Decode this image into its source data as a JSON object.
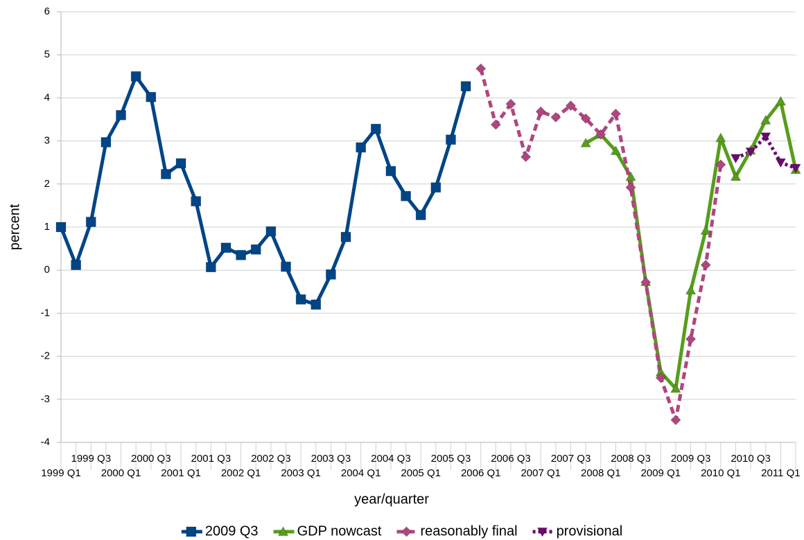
{
  "chart_data": {
    "type": "line",
    "x_label": "year/quarter",
    "y_label": "percent",
    "categories": [
      "1999 Q1",
      null,
      "1999 Q3",
      null,
      "2000 Q1",
      null,
      "2000 Q3",
      null,
      "2001 Q1",
      null,
      "2001 Q3",
      null,
      "2002 Q1",
      null,
      "2002 Q3",
      null,
      "2003 Q1",
      null,
      "2003 Q3",
      null,
      "2004 Q1",
      null,
      "2004 Q3",
      null,
      "2005 Q1",
      null,
      "2005 Q3",
      null,
      "2006 Q1",
      null,
      "2006 Q3",
      null,
      "2007 Q1",
      null,
      "2007 Q3",
      null,
      "2008 Q1",
      null,
      "2008 Q3",
      null,
      "2009 Q1",
      null,
      "2009 Q3",
      null,
      "2010 Q1",
      null,
      "2010 Q3",
      null,
      "2011 Q1",
      null
    ],
    "ylim": [
      -4,
      6
    ],
    "yticks": [
      -4,
      -3,
      -2,
      -1,
      0,
      1,
      2,
      3,
      4,
      5,
      6
    ],
    "grid": true,
    "legend": "bottom",
    "series": [
      {
        "name": "2009 Q3",
        "color": "#004586",
        "marker": "square",
        "dash": "solid",
        "values": [
          1.0,
          0.12,
          1.12,
          2.97,
          3.6,
          4.5,
          4.02,
          2.23,
          2.48,
          1.6,
          0.07,
          0.52,
          0.35,
          0.48,
          0.9,
          0.08,
          -0.68,
          -0.8,
          -0.1,
          0.77,
          2.85,
          3.28,
          2.3,
          1.72,
          1.28,
          1.92,
          3.03,
          4.27,
          null,
          null,
          null,
          null,
          null,
          null,
          null,
          null,
          null,
          null,
          null,
          null,
          null,
          null,
          null,
          null,
          null,
          null,
          null,
          null,
          null,
          null
        ]
      },
      {
        "name": "GDP nowcast",
        "color": "#579d1c",
        "marker": "triangle",
        "dash": "solid",
        "values": [
          null,
          null,
          null,
          null,
          null,
          null,
          null,
          null,
          null,
          null,
          null,
          null,
          null,
          null,
          null,
          null,
          null,
          null,
          null,
          null,
          null,
          null,
          null,
          null,
          null,
          null,
          null,
          null,
          null,
          null,
          null,
          null,
          null,
          null,
          null,
          2.95,
          3.15,
          2.77,
          2.17,
          -0.27,
          -2.37,
          -2.75,
          -0.47,
          0.92,
          3.07,
          2.17,
          2.78,
          3.48,
          3.92,
          2.33
        ]
      },
      {
        "name": "reasonably final",
        "color": "#b0467f",
        "marker": "diamond",
        "dash": "dashed",
        "values": [
          null,
          null,
          null,
          null,
          null,
          null,
          null,
          null,
          null,
          null,
          null,
          null,
          null,
          null,
          null,
          null,
          null,
          null,
          null,
          null,
          null,
          null,
          null,
          null,
          null,
          null,
          null,
          null,
          4.68,
          3.38,
          3.86,
          2.63,
          3.68,
          3.55,
          3.82,
          3.52,
          3.15,
          3.63,
          1.92,
          -0.28,
          -2.5,
          -3.48,
          -1.6,
          0.12,
          2.45,
          null,
          null,
          null,
          null,
          null
        ]
      },
      {
        "name": "provisional",
        "color": "#6b0a6e",
        "marker": "triangle-down",
        "dash": "dotted",
        "values": [
          null,
          null,
          null,
          null,
          null,
          null,
          null,
          null,
          null,
          null,
          null,
          null,
          null,
          null,
          null,
          null,
          null,
          null,
          null,
          null,
          null,
          null,
          null,
          null,
          null,
          null,
          null,
          null,
          null,
          null,
          null,
          null,
          null,
          null,
          null,
          null,
          null,
          null,
          null,
          null,
          null,
          null,
          null,
          null,
          null,
          2.6,
          2.75,
          3.1,
          2.5,
          2.37
        ]
      }
    ]
  }
}
